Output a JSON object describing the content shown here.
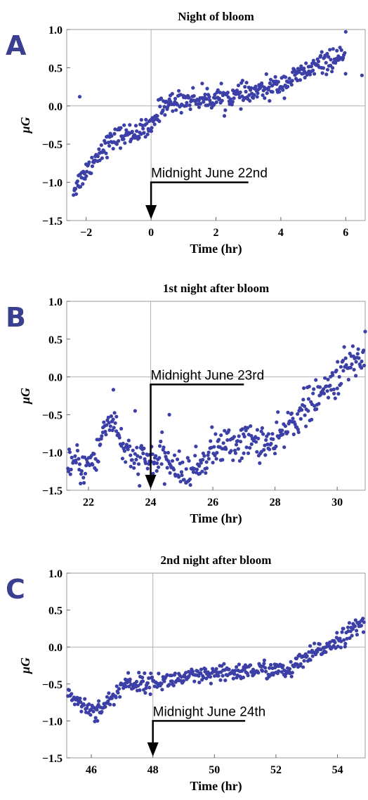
{
  "chart_data": [
    {
      "panel": "A",
      "type": "scatter",
      "title": "Night of bloom",
      "xlabel": "Time (hr)",
      "ylabel": "μG",
      "xlim": [
        -2.6,
        6.6
      ],
      "ylim": [
        -1.5,
        1.0
      ],
      "xticks": [
        -2,
        0,
        2,
        4,
        6
      ],
      "xtick_labels": [
        "−2",
        "0",
        "2",
        "4",
        "6"
      ],
      "yticks": [
        -1.5,
        -1.0,
        -0.5,
        0.0,
        0.5,
        1.0
      ],
      "ytick_labels": [
        "−1.5",
        "−1.0",
        "−0.5",
        "0.0",
        "0.5",
        "1.0"
      ],
      "marker_color": "#3b3fa6",
      "annotation": {
        "text": "Midnight June 22nd",
        "x": 0,
        "text_x_end": 3.0,
        "y": -1.0
      },
      "trend": [
        [
          -2.4,
          -1.1
        ],
        [
          -2.0,
          -0.85
        ],
        [
          -1.5,
          -0.55
        ],
        [
          -1.0,
          -0.4
        ],
        [
          -0.5,
          -0.35
        ],
        [
          0.0,
          -0.3
        ],
        [
          0.3,
          0.0
        ],
        [
          1.0,
          0.08
        ],
        [
          2.0,
          0.1
        ],
        [
          3.0,
          0.15
        ],
        [
          4.0,
          0.28
        ],
        [
          5.0,
          0.5
        ],
        [
          5.5,
          0.6
        ],
        [
          6.0,
          0.6
        ]
      ],
      "x_range_points": [
        -2.4,
        6.0
      ],
      "noise": 0.07,
      "outliers": [
        [
          -2.2,
          0.12
        ],
        [
          6.0,
          0.97
        ],
        [
          6.5,
          0.4
        ]
      ]
    },
    {
      "panel": "B",
      "type": "scatter",
      "title": "1st night after bloom",
      "xlabel": "Time (hr)",
      "ylabel": "μG",
      "xlim": [
        21.3,
        30.9
      ],
      "ylim": [
        -1.5,
        1.0
      ],
      "xticks": [
        22,
        24,
        26,
        28,
        30
      ],
      "xtick_labels": [
        "22",
        "24",
        "26",
        "28",
        "30"
      ],
      "yticks": [
        -1.5,
        -1.0,
        -0.5,
        0.0,
        0.5,
        1.0
      ],
      "ytick_labels": [
        "−1.5",
        "−1.0",
        "−0.5",
        "0.0",
        "0.5",
        "1.0"
      ],
      "marker_color": "#3b3fa6",
      "annotation": {
        "text": "Midnight June 23rd",
        "x": 24,
        "text_x_end": 27.0,
        "y": -0.1
      },
      "trend": [
        [
          21.3,
          -1.1
        ],
        [
          21.8,
          -1.2
        ],
        [
          22.3,
          -1.05
        ],
        [
          22.5,
          -0.65
        ],
        [
          22.8,
          -0.55
        ],
        [
          23.0,
          -0.8
        ],
        [
          23.3,
          -1.1
        ],
        [
          24.0,
          -1.1
        ],
        [
          24.5,
          -1.1
        ],
        [
          25.0,
          -1.3
        ],
        [
          25.5,
          -1.2
        ],
        [
          26.0,
          -0.95
        ],
        [
          26.5,
          -0.9
        ],
        [
          27.0,
          -0.85
        ],
        [
          27.5,
          -0.85
        ],
        [
          28.0,
          -0.9
        ],
        [
          28.5,
          -0.6
        ],
        [
          29.0,
          -0.4
        ],
        [
          29.5,
          -0.25
        ],
        [
          30.0,
          0.0
        ],
        [
          30.5,
          0.2
        ],
        [
          30.9,
          0.3
        ]
      ],
      "x_range_points": [
        21.3,
        30.9
      ],
      "noise": 0.12,
      "outliers": [
        [
          22.8,
          -0.17
        ],
        [
          24.6,
          -0.5
        ],
        [
          30.9,
          0.6
        ],
        [
          23.5,
          -0.45
        ]
      ]
    },
    {
      "panel": "C",
      "type": "scatter",
      "title": "2nd night after  bloom",
      "xlabel": "Time (hr)",
      "ylabel": "μG",
      "xlim": [
        45.2,
        54.9
      ],
      "ylim": [
        -1.5,
        1.0
      ],
      "xticks": [
        46,
        48,
        50,
        52,
        54
      ],
      "xtick_labels": [
        "46",
        "48",
        "50",
        "52",
        "54"
      ],
      "yticks": [
        -1.5,
        -1.0,
        -0.5,
        0.0,
        0.5,
        1.0
      ],
      "ytick_labels": [
        "−1.5",
        "−1.0",
        "−0.5",
        "0.0",
        "0.5",
        "1.0"
      ],
      "marker_color": "#3b3fa6",
      "annotation": {
        "text": "Midnight June 24th",
        "x": 48,
        "text_x_end": 51.0,
        "y": -1.0
      },
      "trend": [
        [
          45.2,
          -0.6
        ],
        [
          45.6,
          -0.75
        ],
        [
          46.0,
          -0.85
        ],
        [
          46.4,
          -0.8
        ],
        [
          46.8,
          -0.65
        ],
        [
          47.0,
          -0.5
        ],
        [
          48.0,
          -0.48
        ],
        [
          49.0,
          -0.42
        ],
        [
          50.0,
          -0.38
        ],
        [
          51.0,
          -0.32
        ],
        [
          52.0,
          -0.3
        ],
        [
          52.3,
          -0.35
        ],
        [
          53.0,
          -0.15
        ],
        [
          54.0,
          0.1
        ],
        [
          54.9,
          0.33
        ]
      ],
      "x_range_points": [
        45.2,
        54.9
      ],
      "noise": 0.06,
      "outliers": [
        [
          46.2,
          -1.0
        ],
        [
          47.2,
          -0.35
        ]
      ]
    }
  ]
}
